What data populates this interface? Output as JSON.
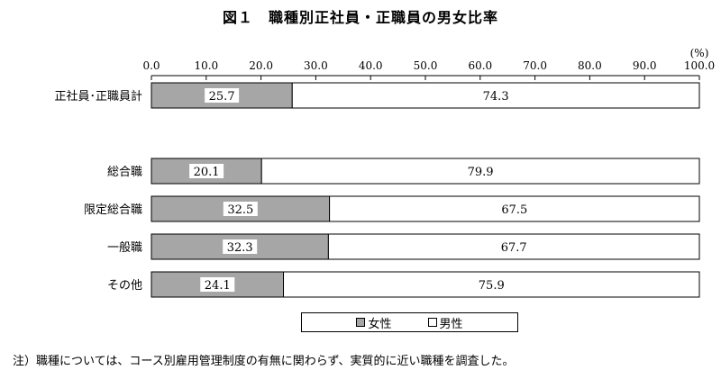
{
  "title": "図１　職種別正社員・正職員の男女比率",
  "note": "注）職種については、コース別雇用管理制度の有無に関わらず、実質的に近い職種を調査した。",
  "colors": {
    "female": "#a6a6a6",
    "male": "#ffffff",
    "border": "#000000"
  },
  "chart_data": {
    "type": "bar",
    "orientation": "horizontal",
    "stacked": true,
    "unit": "(%)",
    "xlim": [
      0,
      100
    ],
    "ticks": [
      "0.0",
      "10.0",
      "20.0",
      "30.0",
      "40.0",
      "50.0",
      "60.0",
      "70.0",
      "80.0",
      "90.0",
      "100.0"
    ],
    "categories": [
      "正社員･正職員計",
      "総合職",
      "限定総合職",
      "一般職",
      "その他"
    ],
    "series": [
      {
        "name": "女性",
        "values": [
          25.7,
          20.1,
          32.5,
          32.3,
          24.1
        ],
        "labels": [
          "25.7",
          "20.1",
          "32.5",
          "32.3",
          "24.1"
        ]
      },
      {
        "name": "男性",
        "values": [
          74.3,
          79.9,
          67.5,
          67.7,
          75.9
        ],
        "labels": [
          "74.3",
          "79.9",
          "67.5",
          "67.7",
          "75.9"
        ]
      }
    ],
    "legend_position": "bottom"
  }
}
